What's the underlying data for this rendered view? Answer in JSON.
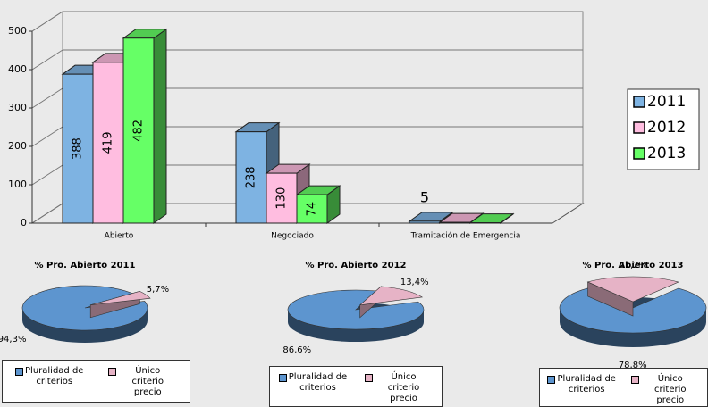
{
  "chart_data": [
    {
      "type": "bar3d",
      "categories": [
        "Abierto",
        "Negociado",
        "Tramitación de Emergencia"
      ],
      "series": [
        {
          "name": "2011",
          "color": "#7eb3e2",
          "values": [
            388,
            238,
            5
          ],
          "value_labels": [
            "388",
            "238",
            "5"
          ]
        },
        {
          "name": "2012",
          "color": "#ffbde0",
          "values": [
            419,
            130,
            2
          ],
          "value_labels": [
            "419",
            "130",
            null
          ]
        },
        {
          "name": "2013",
          "color": "#66ff66",
          "values": [
            482,
            74,
            1
          ],
          "value_labels": [
            "482",
            "74",
            null
          ]
        }
      ],
      "ylim": [
        0,
        500
      ],
      "yticks": [
        0,
        100,
        200,
        300,
        400,
        500
      ],
      "grid": true,
      "legend": "right"
    },
    {
      "type": "pie3d",
      "title": "% Pro. Abierto 2011",
      "categories": [
        "Pluralidad de criterios",
        "Único criterio precio"
      ],
      "values": [
        94.3,
        5.7
      ],
      "value_labels": [
        "94,3%",
        "5,7%"
      ],
      "colors": [
        "#5d95cf",
        "#e6b3c6"
      ],
      "legend": "bottom"
    },
    {
      "type": "pie3d",
      "title": "% Pro. Abierto 2012",
      "categories": [
        "Pluralidad de criterios",
        "Único criterio precio"
      ],
      "values": [
        86.6,
        13.4
      ],
      "value_labels": [
        "86,6%",
        "13,4%"
      ],
      "colors": [
        "#5d95cf",
        "#e6b3c6"
      ],
      "legend": "bottom"
    },
    {
      "type": "pie3d",
      "title": "% Pro. Abierto 2013",
      "categories": [
        "Pluralidad de criterios",
        "Único criterio precio"
      ],
      "values": [
        78.8,
        21.2
      ],
      "value_labels": [
        "78,8%",
        "21,2%"
      ],
      "colors": [
        "#5d95cf",
        "#e6b3c6"
      ],
      "legend": "bottom"
    }
  ]
}
